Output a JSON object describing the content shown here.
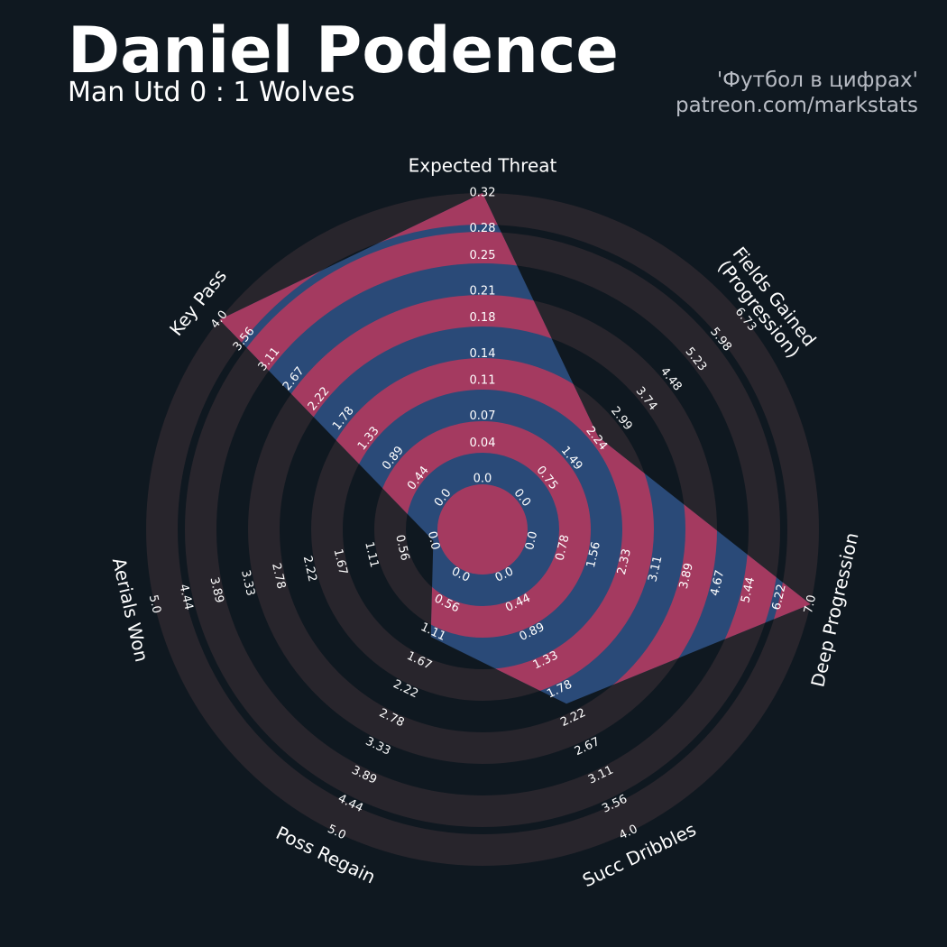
{
  "chart_data": {
    "type": "radar",
    "title": "Daniel Podence",
    "subtitle": "Man Utd 0 : 1 Wolves",
    "credits": [
      "'Футбол в цифрах'",
      "patreon.com/markstats"
    ],
    "categories": [
      "Expected Threat",
      "Fields Gained\n(Progression)",
      "Deep Progression",
      "Succ Dribbles",
      "Poss Regain",
      "Aerials Won",
      "Key Pass"
    ],
    "rlims": [
      [
        0,
        0.32
      ],
      [
        0,
        6.73
      ],
      [
        0,
        7
      ],
      [
        0,
        4
      ],
      [
        0,
        5
      ],
      [
        0,
        5
      ],
      [
        0,
        4
      ]
    ],
    "rticks": [
      [
        {
          "value": 0,
          "label": "0.0"
        },
        0.04,
        0.07,
        0.11,
        0.14,
        0.18,
        0.21,
        0.25,
        0.28,
        0.32
      ],
      [
        {
          "value": 0,
          "label": "0.0"
        },
        0.75,
        1.49,
        2.24,
        2.99,
        3.74,
        4.48,
        5.23,
        5.98,
        6.73
      ],
      [
        {
          "value": 0,
          "label": "0.0"
        },
        0.78,
        1.56,
        2.33,
        3.11,
        3.89,
        4.67,
        5.44,
        6.22,
        {
          "value": 7,
          "label": "7.0"
        }
      ],
      [
        {
          "value": 0,
          "label": "0.0"
        },
        0.44,
        0.89,
        1.33,
        1.78,
        2.22,
        2.67,
        3.11,
        3.56,
        {
          "value": 4,
          "label": "4.0"
        }
      ],
      [
        {
          "value": 0,
          "label": "0.0"
        },
        0.56,
        1.11,
        1.67,
        2.22,
        2.78,
        3.33,
        3.89,
        4.44,
        {
          "value": 5,
          "label": "5.0"
        }
      ],
      [
        {
          "value": 0,
          "label": "0.0"
        },
        0.56,
        1.11,
        1.67,
        2.22,
        2.78,
        3.33,
        3.89,
        4.44,
        {
          "value": 5,
          "label": "5.0"
        }
      ],
      [
        {
          "value": 0,
          "label": "0.0"
        },
        0.44,
        0.89,
        1.33,
        1.78,
        2.22,
        2.67,
        3.11,
        3.56,
        {
          "value": 4,
          "label": "4.0"
        }
      ]
    ],
    "series": [
      {
        "values": [
          0.32,
          2.3,
          7,
          2.0,
          1.2,
          0,
          4
        ],
        "color": "#2a4a78",
        "ring_color": "#a43a60"
      }
    ],
    "ring_color": "#28252c"
  }
}
